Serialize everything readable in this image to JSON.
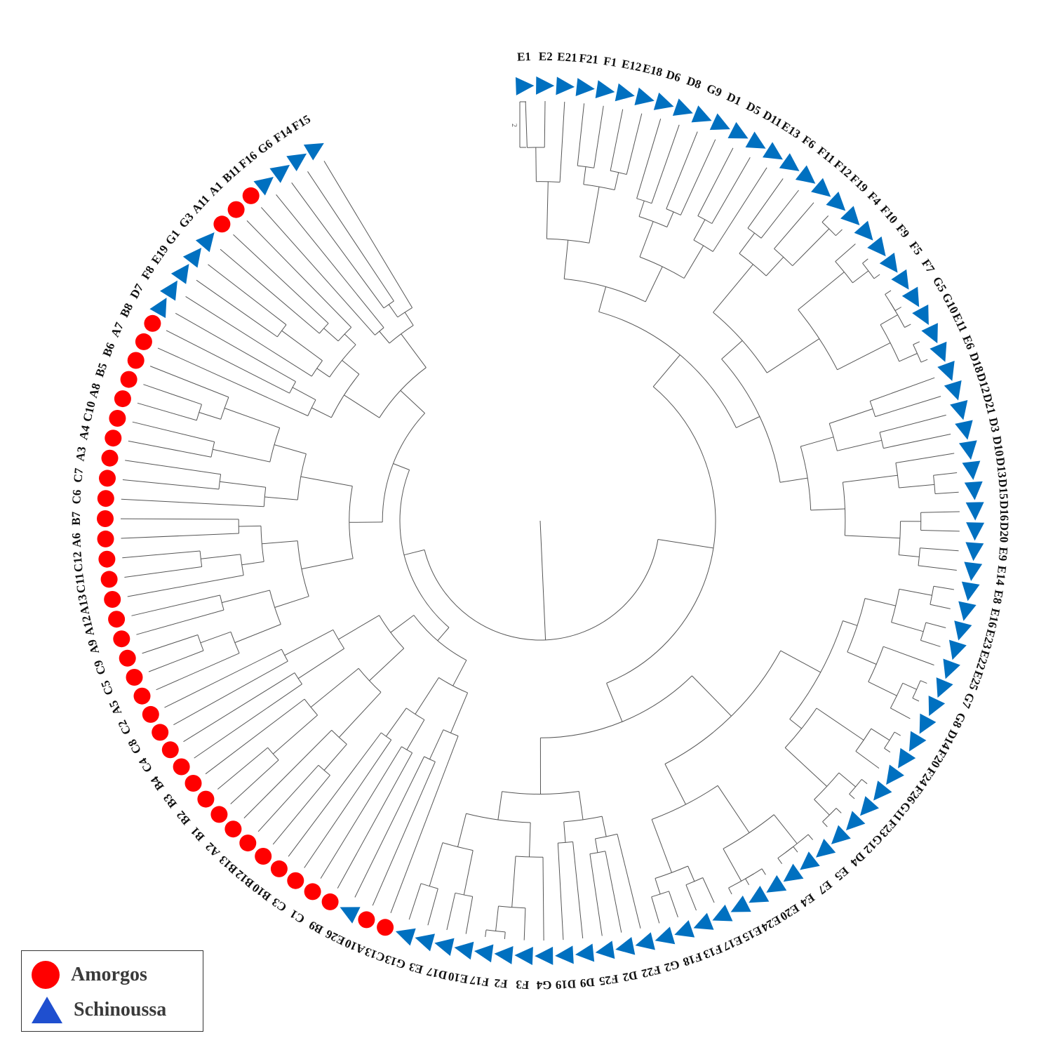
{
  "legend": {
    "items": [
      {
        "label": "Amorgos",
        "color": "#ff0000",
        "shape": "circle"
      },
      {
        "label": "Schinoussa",
        "color": "#0070c0",
        "shape": "triangle"
      }
    ]
  },
  "scale_bar_label": "2",
  "tree": {
    "leaves": [
      {
        "label": "E1",
        "group": "Schinoussa"
      },
      {
        "label": "E2",
        "group": "Schinoussa"
      },
      {
        "label": "E21",
        "group": "Schinoussa"
      },
      {
        "label": "F21",
        "group": "Schinoussa"
      },
      {
        "label": "F1",
        "group": "Schinoussa"
      },
      {
        "label": "E12",
        "group": "Schinoussa"
      },
      {
        "label": "E18",
        "group": "Schinoussa"
      },
      {
        "label": "D6",
        "group": "Schinoussa"
      },
      {
        "label": "D8",
        "group": "Schinoussa"
      },
      {
        "label": "G9",
        "group": "Schinoussa"
      },
      {
        "label": "D1",
        "group": "Schinoussa"
      },
      {
        "label": "D5",
        "group": "Schinoussa"
      },
      {
        "label": "D11",
        "group": "Schinoussa"
      },
      {
        "label": "E13",
        "group": "Schinoussa"
      },
      {
        "label": "F6",
        "group": "Schinoussa"
      },
      {
        "label": "F11",
        "group": "Schinoussa"
      },
      {
        "label": "F12",
        "group": "Schinoussa"
      },
      {
        "label": "F19",
        "group": "Schinoussa"
      },
      {
        "label": "F4",
        "group": "Schinoussa"
      },
      {
        "label": "F10",
        "group": "Schinoussa"
      },
      {
        "label": "F9",
        "group": "Schinoussa"
      },
      {
        "label": "F5",
        "group": "Schinoussa"
      },
      {
        "label": "F7",
        "group": "Schinoussa"
      },
      {
        "label": "G5",
        "group": "Schinoussa"
      },
      {
        "label": "G10",
        "group": "Schinoussa"
      },
      {
        "label": "E11",
        "group": "Schinoussa"
      },
      {
        "label": "E6",
        "group": "Schinoussa"
      },
      {
        "label": "D18",
        "group": "Schinoussa"
      },
      {
        "label": "D12",
        "group": "Schinoussa"
      },
      {
        "label": "D21",
        "group": "Schinoussa"
      },
      {
        "label": "D3",
        "group": "Schinoussa"
      },
      {
        "label": "D10",
        "group": "Schinoussa"
      },
      {
        "label": "D13",
        "group": "Schinoussa"
      },
      {
        "label": "D15",
        "group": "Schinoussa"
      },
      {
        "label": "D16",
        "group": "Schinoussa"
      },
      {
        "label": "D20",
        "group": "Schinoussa"
      },
      {
        "label": "E9",
        "group": "Schinoussa"
      },
      {
        "label": "E14",
        "group": "Schinoussa"
      },
      {
        "label": "E8",
        "group": "Schinoussa"
      },
      {
        "label": "E16",
        "group": "Schinoussa"
      },
      {
        "label": "E23",
        "group": "Schinoussa"
      },
      {
        "label": "E22",
        "group": "Schinoussa"
      },
      {
        "label": "E25",
        "group": "Schinoussa"
      },
      {
        "label": "G7",
        "group": "Schinoussa"
      },
      {
        "label": "G8",
        "group": "Schinoussa"
      },
      {
        "label": "D14",
        "group": "Schinoussa"
      },
      {
        "label": "F20",
        "group": "Schinoussa"
      },
      {
        "label": "F24",
        "group": "Schinoussa"
      },
      {
        "label": "F26",
        "group": "Schinoussa"
      },
      {
        "label": "G11",
        "group": "Schinoussa"
      },
      {
        "label": "F23",
        "group": "Schinoussa"
      },
      {
        "label": "G12",
        "group": "Schinoussa"
      },
      {
        "label": "D4",
        "group": "Schinoussa"
      },
      {
        "label": "E5",
        "group": "Schinoussa"
      },
      {
        "label": "E7",
        "group": "Schinoussa"
      },
      {
        "label": "E4",
        "group": "Schinoussa"
      },
      {
        "label": "E20",
        "group": "Schinoussa"
      },
      {
        "label": "E24",
        "group": "Schinoussa"
      },
      {
        "label": "E15",
        "group": "Schinoussa"
      },
      {
        "label": "E17",
        "group": "Schinoussa"
      },
      {
        "label": "F13",
        "group": "Schinoussa"
      },
      {
        "label": "F18",
        "group": "Schinoussa"
      },
      {
        "label": "G2",
        "group": "Schinoussa"
      },
      {
        "label": "F22",
        "group": "Schinoussa"
      },
      {
        "label": "D2",
        "group": "Schinoussa"
      },
      {
        "label": "F25",
        "group": "Schinoussa"
      },
      {
        "label": "D9",
        "group": "Schinoussa"
      },
      {
        "label": "D19",
        "group": "Schinoussa"
      },
      {
        "label": "G4",
        "group": "Schinoussa"
      },
      {
        "label": "F3",
        "group": "Schinoussa"
      },
      {
        "label": "F2",
        "group": "Schinoussa"
      },
      {
        "label": "F17",
        "group": "Schinoussa"
      },
      {
        "label": "E10",
        "group": "Schinoussa"
      },
      {
        "label": "D17",
        "group": "Schinoussa"
      },
      {
        "label": "E3",
        "group": "Schinoussa"
      },
      {
        "label": "G13",
        "group": "Schinoussa"
      },
      {
        "label": "C13",
        "group": "Amorgos"
      },
      {
        "label": "A10",
        "group": "Amorgos"
      },
      {
        "label": "E26",
        "group": "Schinoussa"
      },
      {
        "label": "B9",
        "group": "Amorgos"
      },
      {
        "label": "C1",
        "group": "Amorgos"
      },
      {
        "label": "C3",
        "group": "Amorgos"
      },
      {
        "label": "B10",
        "group": "Amorgos"
      },
      {
        "label": "B12",
        "group": "Amorgos"
      },
      {
        "label": "B13",
        "group": "Amorgos"
      },
      {
        "label": "A2",
        "group": "Amorgos"
      },
      {
        "label": "B1",
        "group": "Amorgos"
      },
      {
        "label": "B2",
        "group": "Amorgos"
      },
      {
        "label": "B3",
        "group": "Amorgos"
      },
      {
        "label": "B4",
        "group": "Amorgos"
      },
      {
        "label": "C4",
        "group": "Amorgos"
      },
      {
        "label": "C8",
        "group": "Amorgos"
      },
      {
        "label": "C2",
        "group": "Amorgos"
      },
      {
        "label": "A5",
        "group": "Amorgos"
      },
      {
        "label": "C5",
        "group": "Amorgos"
      },
      {
        "label": "C9",
        "group": "Amorgos"
      },
      {
        "label": "A9",
        "group": "Amorgos"
      },
      {
        "label": "A12",
        "group": "Amorgos"
      },
      {
        "label": "A13",
        "group": "Amorgos"
      },
      {
        "label": "C11",
        "group": "Amorgos"
      },
      {
        "label": "C12",
        "group": "Amorgos"
      },
      {
        "label": "A6",
        "group": "Amorgos"
      },
      {
        "label": "B7",
        "group": "Amorgos"
      },
      {
        "label": "C6",
        "group": "Amorgos"
      },
      {
        "label": "C7",
        "group": "Amorgos"
      },
      {
        "label": "A3",
        "group": "Amorgos"
      },
      {
        "label": "A4",
        "group": "Amorgos"
      },
      {
        "label": "C10",
        "group": "Amorgos"
      },
      {
        "label": "A8",
        "group": "Amorgos"
      },
      {
        "label": "B5",
        "group": "Amorgos"
      },
      {
        "label": "B6",
        "group": "Amorgos"
      },
      {
        "label": "A7",
        "group": "Amorgos"
      },
      {
        "label": "B8",
        "group": "Amorgos"
      },
      {
        "label": "D7",
        "group": "Schinoussa"
      },
      {
        "label": "F8",
        "group": "Schinoussa"
      },
      {
        "label": "E19",
        "group": "Schinoussa"
      },
      {
        "label": "G1",
        "group": "Schinoussa"
      },
      {
        "label": "G3",
        "group": "Schinoussa"
      },
      {
        "label": "A11",
        "group": "Amorgos"
      },
      {
        "label": "A1",
        "group": "Amorgos"
      },
      {
        "label": "B11",
        "group": "Amorgos"
      },
      {
        "label": "F16",
        "group": "Schinoussa"
      },
      {
        "label": "G6",
        "group": "Schinoussa"
      },
      {
        "label": "F14",
        "group": "Schinoussa"
      },
      {
        "label": "F15",
        "group": "Schinoussa"
      }
    ]
  }
}
